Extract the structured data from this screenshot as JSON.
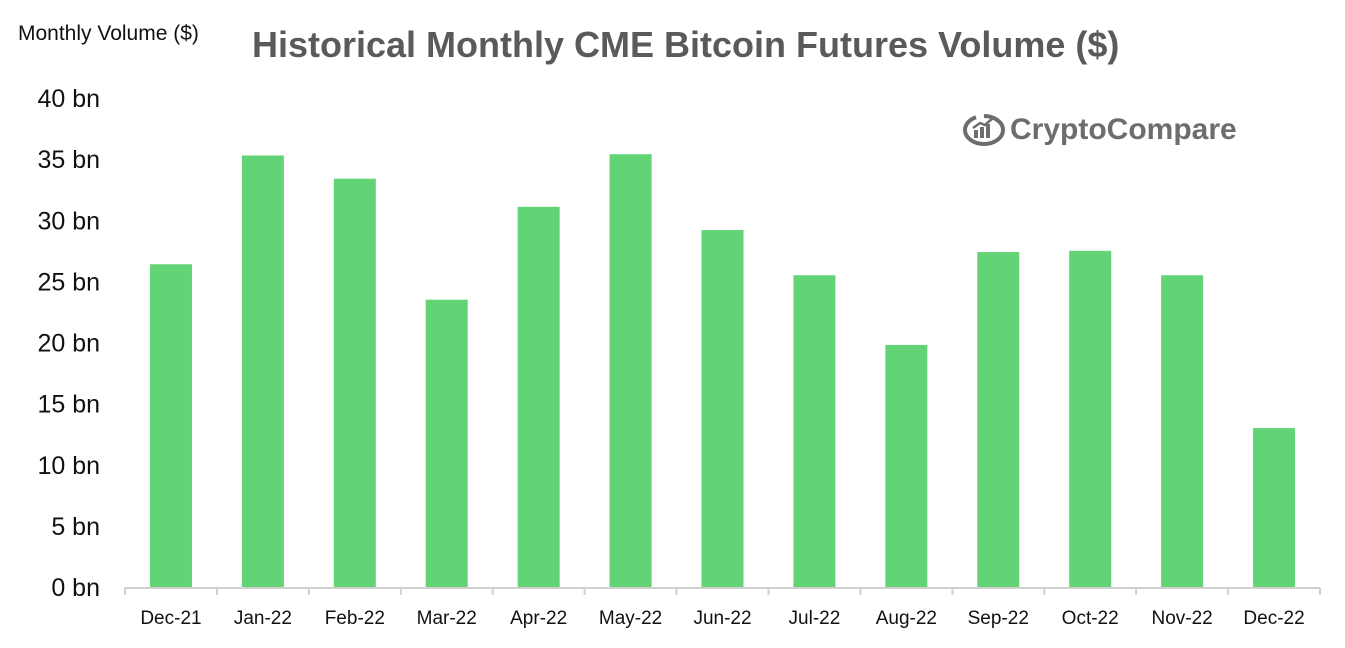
{
  "chart_data": {
    "type": "bar",
    "title": "Historical Monthly CME Bitcoin Futures Volume ($)",
    "ylabel": "Monthly Volume ($)",
    "xlabel": "",
    "ylim": [
      0,
      40
    ],
    "yticks": [
      "0 bn",
      "5 bn",
      "10 bn",
      "15 bn",
      "20 bn",
      "25 bn",
      "30 bn",
      "35 bn",
      "40 bn"
    ],
    "ytick_values": [
      0,
      5,
      10,
      15,
      20,
      25,
      30,
      35,
      40
    ],
    "y_unit": "bn",
    "grid": false,
    "categories": [
      "Dec-21",
      "Jan-22",
      "Feb-22",
      "Mar-22",
      "Apr-22",
      "May-22",
      "Jun-22",
      "Jul-22",
      "Aug-22",
      "Sep-22",
      "Oct-22",
      "Nov-22",
      "Dec-22"
    ],
    "values": [
      26.4,
      35.3,
      33.4,
      23.5,
      31.1,
      35.4,
      29.2,
      25.5,
      19.8,
      27.4,
      27.5,
      25.5,
      13.0
    ],
    "bar_color": "#62d475",
    "watermark": "CryptoCompare"
  }
}
